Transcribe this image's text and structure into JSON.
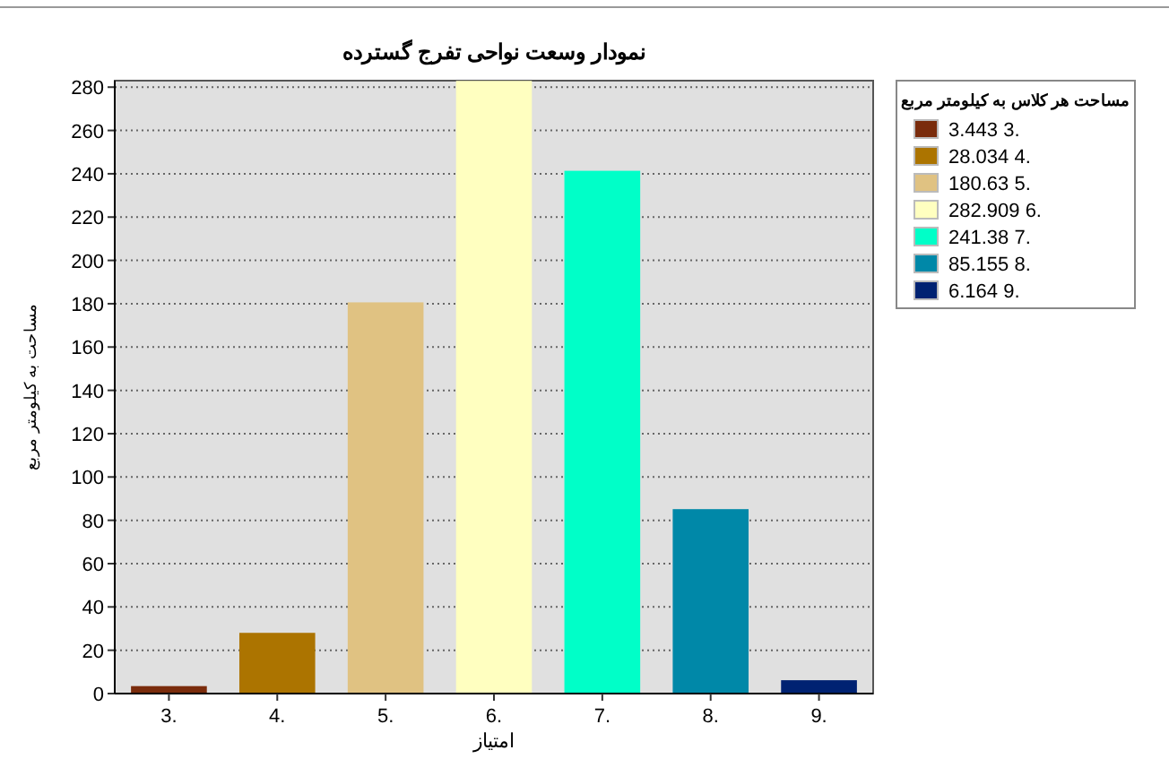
{
  "chart_data": {
    "type": "bar",
    "title": "نمودار وسعت نواحی تفرج گسترده",
    "xlabel": "امتیاز",
    "ylabel": "مساحت به کیلومتر مربع",
    "legend_title": "مساحت هر کلاس به کیلومتر مربع",
    "categories": [
      "3.",
      "4.",
      "5.",
      "6.",
      "7.",
      "8.",
      "9."
    ],
    "series": [
      {
        "name": "3.443 3.",
        "color": "#7a2c0c",
        "values": [
          3.443,
          null,
          null,
          null,
          null,
          null,
          null
        ]
      },
      {
        "name": "28.034 4.",
        "color": "#ac7400",
        "values": [
          null,
          28.034,
          null,
          null,
          null,
          null,
          null
        ]
      },
      {
        "name": "180.63 5.",
        "color": "#e0c282",
        "values": [
          null,
          null,
          180.63,
          null,
          null,
          null,
          null
        ]
      },
      {
        "name": "282.909 6.",
        "color": "#ffffc0",
        "values": [
          null,
          null,
          null,
          282.909,
          null,
          null,
          null
        ]
      },
      {
        "name": "241.38 7.",
        "color": "#00ffc8",
        "values": [
          null,
          null,
          null,
          null,
          241.38,
          null,
          null
        ]
      },
      {
        "name": "85.155 8.",
        "color": "#0088a8",
        "values": [
          null,
          null,
          null,
          null,
          null,
          85.155,
          null
        ]
      },
      {
        "name": "6.164 9.",
        "color": "#002272",
        "values": [
          null,
          null,
          null,
          null,
          null,
          null,
          6.164
        ]
      }
    ],
    "ylim": [
      0,
      283
    ],
    "yticks": [
      0,
      20,
      40,
      60,
      80,
      100,
      120,
      140,
      160,
      180,
      200,
      220,
      240,
      260,
      280
    ],
    "grid": "y",
    "legend": "right"
  }
}
